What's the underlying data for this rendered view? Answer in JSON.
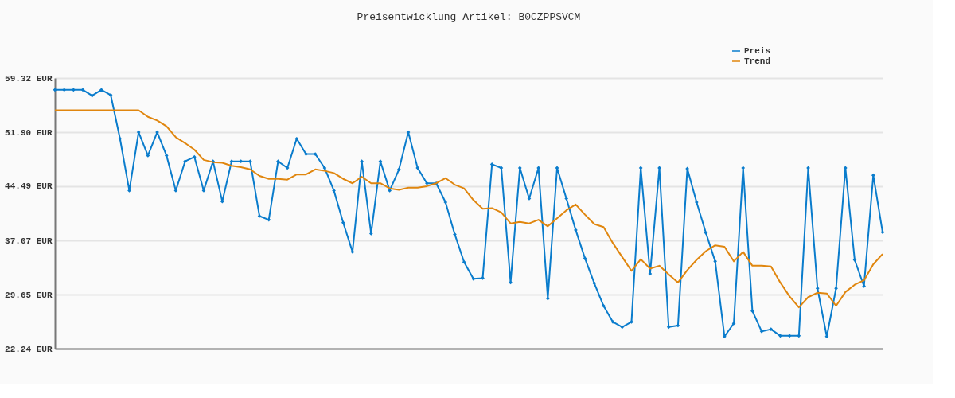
{
  "chart_data": {
    "type": "line",
    "title": "Preisentwicklung Artikel: B0CZPPSVCM",
    "categories": [
      null,
      null,
      null,
      null,
      null,
      null,
      null,
      null,
      null,
      null,
      null,
      null,
      null,
      null,
      null,
      null,
      null,
      null,
      null,
      null,
      null,
      null,
      null,
      null,
      null,
      null,
      null,
      null,
      null,
      null,
      null,
      null,
      null,
      null,
      null,
      null,
      null,
      null,
      null,
      null,
      null,
      null,
      null,
      null,
      null,
      null,
      null,
      null,
      null,
      null,
      null,
      null,
      null,
      null,
      null,
      null,
      null,
      null,
      null,
      null,
      null,
      null,
      null,
      null,
      null,
      null,
      null,
      null,
      null,
      null,
      null,
      null,
      null,
      null,
      null,
      null,
      null,
      null,
      null,
      null,
      null,
      null,
      null,
      null,
      null,
      null,
      null,
      null,
      null,
      null
    ],
    "series": [
      {
        "name": "Preis",
        "color": "#0a7ccc",
        "marker": "diamond",
        "values": [
          57.7,
          57.7,
          57.7,
          57.7,
          56.9,
          57.7,
          57.0,
          51.0,
          43.9,
          51.9,
          48.7,
          51.9,
          48.7,
          43.9,
          47.9,
          48.5,
          43.9,
          47.9,
          42.4,
          47.9,
          47.9,
          47.9,
          40.4,
          39.9,
          47.9,
          47.0,
          51.0,
          48.9,
          48.9,
          47.0,
          43.9,
          39.5,
          35.5,
          47.9,
          38.0,
          47.9,
          43.9,
          46.8,
          51.9,
          47.0,
          44.9,
          44.9,
          42.3,
          37.9,
          34.1,
          31.8,
          31.9,
          47.5,
          47.0,
          31.3,
          47.0,
          42.8,
          47.0,
          29.1,
          47.0,
          42.8,
          38.5,
          34.6,
          31.2,
          28.1,
          25.9,
          25.2,
          25.9,
          47.0,
          32.5,
          47.0,
          25.2,
          25.4,
          46.9,
          42.3,
          38.1,
          34.2,
          23.9,
          25.7,
          47.0,
          27.4,
          24.6,
          24.9,
          24.0,
          24.0,
          24.0,
          47.0,
          30.5,
          23.9,
          30.5,
          47.0,
          34.4,
          30.8,
          46.0,
          38.2
        ]
      },
      {
        "name": "Trend",
        "color": "#e0860e",
        "marker": "none",
        "values": [
          54.9,
          54.9,
          54.9,
          54.9,
          54.9,
          54.9,
          54.9,
          54.9,
          54.9,
          54.9,
          54.0,
          53.5,
          52.7,
          51.2,
          50.4,
          49.5,
          48.1,
          47.8,
          47.7,
          47.3,
          47.1,
          46.8,
          45.9,
          45.5,
          45.5,
          45.4,
          46.1,
          46.1,
          46.8,
          46.6,
          46.3,
          45.5,
          44.9,
          45.8,
          44.9,
          44.9,
          44.2,
          44.0,
          44.3,
          44.3,
          44.5,
          44.9,
          45.6,
          44.7,
          44.2,
          42.6,
          41.4,
          41.5,
          40.9,
          39.4,
          39.6,
          39.4,
          39.9,
          39.0,
          40.1,
          41.2,
          42.0,
          40.6,
          39.3,
          38.9,
          36.7,
          34.8,
          32.9,
          34.5,
          33.2,
          33.6,
          32.4,
          31.3,
          33.0,
          34.4,
          35.6,
          36.4,
          36.2,
          34.2,
          35.5,
          33.6,
          33.6,
          33.5,
          31.3,
          29.4,
          27.9,
          29.3,
          29.9,
          29.8,
          28.1,
          30.0,
          31.0,
          31.6,
          33.8,
          35.2
        ]
      }
    ],
    "ylim": [
      22.24,
      59.32
    ],
    "yticks": [
      {
        "value": 22.24,
        "label": "22.24 EUR"
      },
      {
        "value": 29.65,
        "label": "29.65 EUR"
      },
      {
        "value": 37.07,
        "label": "37.07 EUR"
      },
      {
        "value": 44.49,
        "label": "44.49 EUR"
      },
      {
        "value": 51.9,
        "label": "51.90 EUR"
      },
      {
        "value": 59.32,
        "label": "59.32 EUR"
      }
    ],
    "grid": "y",
    "legend": "top right",
    "tick_labels": "y",
    "line_style": "solid"
  }
}
